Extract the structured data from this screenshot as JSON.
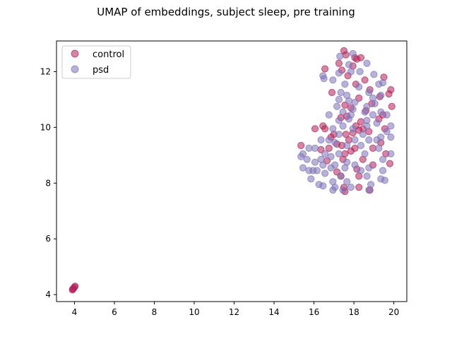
{
  "chart_data": {
    "type": "scatter",
    "title": "UMAP of embeddings, subject sleep, pre training",
    "xlabel": "",
    "ylabel": "",
    "xlim": [
      3.1,
      20.65
    ],
    "ylim": [
      3.75,
      13.1
    ],
    "xticks": [
      4,
      6,
      8,
      10,
      12,
      14,
      16,
      18,
      20
    ],
    "yticks": [
      4,
      6,
      8,
      10,
      12
    ],
    "grid": false,
    "legend": "top-left",
    "series": [
      {
        "name": "control",
        "color": "#b0215a",
        "points": [
          [
            3.9,
            4.17
          ],
          [
            3.95,
            4.22
          ],
          [
            4.0,
            4.27
          ],
          [
            4.03,
            4.3
          ],
          [
            3.92,
            4.2
          ],
          [
            17.5,
            12.75
          ],
          [
            17.6,
            12.6
          ],
          [
            18.15,
            12.45
          ],
          [
            18.35,
            12.5
          ],
          [
            16.55,
            12.1
          ],
          [
            17.25,
            12.3
          ],
          [
            17.95,
            12.2
          ],
          [
            18.05,
            12.5
          ],
          [
            17.4,
            12.05
          ],
          [
            17.7,
            11.85
          ],
          [
            18.1,
            11.55
          ],
          [
            18.55,
            11.7
          ],
          [
            18.8,
            11.35
          ],
          [
            19.5,
            11.8
          ],
          [
            19.85,
            11.35
          ],
          [
            19.75,
            11.2
          ],
          [
            19.3,
            11.1
          ],
          [
            18.25,
            11.05
          ],
          [
            18.9,
            10.85
          ],
          [
            17.55,
            10.8
          ],
          [
            17.85,
            10.7
          ],
          [
            16.9,
            11.25
          ],
          [
            19.9,
            10.75
          ],
          [
            18.6,
            10.6
          ],
          [
            19.45,
            10.45
          ],
          [
            17.35,
            10.35
          ],
          [
            17.65,
            10.4
          ],
          [
            18.35,
            10.2
          ],
          [
            19.25,
            10.3
          ],
          [
            16.45,
            10.05
          ],
          [
            16.55,
            9.95
          ],
          [
            16.05,
            9.95
          ],
          [
            18.1,
            10.05
          ],
          [
            18.45,
            9.95
          ],
          [
            17.0,
            9.75
          ],
          [
            16.85,
            9.65
          ],
          [
            17.6,
            9.75
          ],
          [
            17.95,
            9.8
          ],
          [
            19.55,
            9.95
          ],
          [
            18.25,
            9.9
          ],
          [
            18.75,
            9.85
          ],
          [
            17.15,
            9.4
          ],
          [
            17.4,
            9.35
          ],
          [
            17.75,
            9.55
          ],
          [
            19.35,
            9.45
          ],
          [
            18.05,
            9.25
          ],
          [
            18.95,
            9.25
          ],
          [
            15.35,
            9.35
          ],
          [
            16.35,
            9.2
          ],
          [
            16.75,
            9.25
          ],
          [
            17.55,
            9.05
          ],
          [
            17.85,
            9.15
          ],
          [
            19.6,
            9.05
          ],
          [
            17.45,
            8.85
          ],
          [
            18.45,
            8.85
          ],
          [
            16.65,
            8.8
          ],
          [
            18.95,
            8.65
          ],
          [
            19.8,
            8.7
          ],
          [
            18.15,
            8.5
          ],
          [
            17.15,
            8.4
          ],
          [
            17.35,
            8.25
          ],
          [
            18.25,
            8.25
          ],
          [
            17.5,
            7.85
          ],
          [
            17.55,
            7.7
          ],
          [
            18.25,
            7.85
          ],
          [
            18.8,
            7.75
          ]
        ]
      },
      {
        "name": "psd",
        "color": "#7f73b8",
        "points": [
          [
            17.3,
            12.55
          ],
          [
            17.95,
            12.65
          ],
          [
            17.75,
            12.25
          ],
          [
            18.65,
            12.3
          ],
          [
            16.45,
            11.85
          ],
          [
            16.5,
            11.75
          ],
          [
            16.95,
            11.7
          ],
          [
            17.25,
            11.95
          ],
          [
            17.85,
            12.0
          ],
          [
            18.3,
            12.0
          ],
          [
            19.0,
            11.9
          ],
          [
            19.25,
            11.55
          ],
          [
            19.45,
            11.6
          ],
          [
            17.55,
            11.55
          ],
          [
            18.25,
            11.45
          ],
          [
            17.35,
            11.25
          ],
          [
            18.75,
            11.25
          ],
          [
            17.65,
            11.15
          ],
          [
            18.95,
            11.05
          ],
          [
            19.35,
            11.15
          ],
          [
            17.25,
            11.0
          ],
          [
            17.75,
            10.95
          ],
          [
            18.05,
            10.9
          ],
          [
            18.65,
            10.75
          ],
          [
            19.05,
            10.85
          ],
          [
            17.15,
            10.75
          ],
          [
            17.95,
            10.65
          ],
          [
            18.55,
            10.55
          ],
          [
            19.35,
            10.55
          ],
          [
            16.75,
            10.45
          ],
          [
            17.45,
            10.55
          ],
          [
            17.85,
            10.45
          ],
          [
            18.95,
            10.45
          ],
          [
            19.65,
            10.45
          ],
          [
            17.25,
            10.25
          ],
          [
            17.75,
            10.3
          ],
          [
            18.65,
            10.25
          ],
          [
            19.15,
            10.15
          ],
          [
            19.85,
            10.05
          ],
          [
            17.45,
            10.05
          ],
          [
            18.65,
            10.05
          ],
          [
            16.95,
            9.95
          ],
          [
            17.95,
            9.95
          ],
          [
            19.65,
            9.85
          ],
          [
            17.25,
            9.75
          ],
          [
            18.45,
            9.75
          ],
          [
            19.35,
            9.65
          ],
          [
            19.85,
            9.65
          ],
          [
            16.35,
            9.55
          ],
          [
            16.75,
            9.55
          ],
          [
            18.05,
            9.55
          ],
          [
            18.75,
            9.55
          ],
          [
            19.15,
            9.55
          ],
          [
            15.75,
            9.25
          ],
          [
            16.05,
            9.25
          ],
          [
            17.05,
            9.45
          ],
          [
            17.65,
            9.35
          ],
          [
            18.35,
            9.35
          ],
          [
            19.25,
            9.25
          ],
          [
            15.45,
            9.05
          ],
          [
            16.55,
            9.05
          ],
          [
            17.25,
            9.05
          ],
          [
            18.55,
            9.05
          ],
          [
            19.85,
            9.05
          ],
          [
            15.35,
            8.95
          ],
          [
            15.65,
            8.85
          ],
          [
            16.35,
            8.85
          ],
          [
            16.85,
            8.95
          ],
          [
            17.65,
            8.75
          ],
          [
            18.05,
            8.65
          ],
          [
            19.45,
            8.85
          ],
          [
            16.05,
            8.75
          ],
          [
            16.45,
            8.65
          ],
          [
            17.05,
            8.65
          ],
          [
            18.75,
            8.55
          ],
          [
            15.45,
            8.55
          ],
          [
            15.75,
            8.45
          ],
          [
            16.15,
            8.45
          ],
          [
            16.85,
            8.55
          ],
          [
            17.55,
            8.55
          ],
          [
            18.35,
            8.45
          ],
          [
            19.45,
            8.45
          ],
          [
            15.95,
            8.45
          ],
          [
            16.55,
            8.35
          ],
          [
            17.35,
            8.25
          ],
          [
            18.65,
            8.25
          ],
          [
            15.85,
            8.15
          ],
          [
            16.25,
            7.95
          ],
          [
            16.95,
            8.05
          ],
          [
            17.65,
            8.05
          ],
          [
            19.35,
            8.15
          ],
          [
            16.45,
            7.9
          ],
          [
            17.05,
            7.85
          ],
          [
            17.85,
            7.85
          ],
          [
            18.85,
            7.95
          ],
          [
            16.95,
            7.75
          ],
          [
            17.45,
            7.75
          ],
          [
            18.75,
            7.75
          ],
          [
            19.55,
            8.1
          ]
        ]
      }
    ]
  }
}
